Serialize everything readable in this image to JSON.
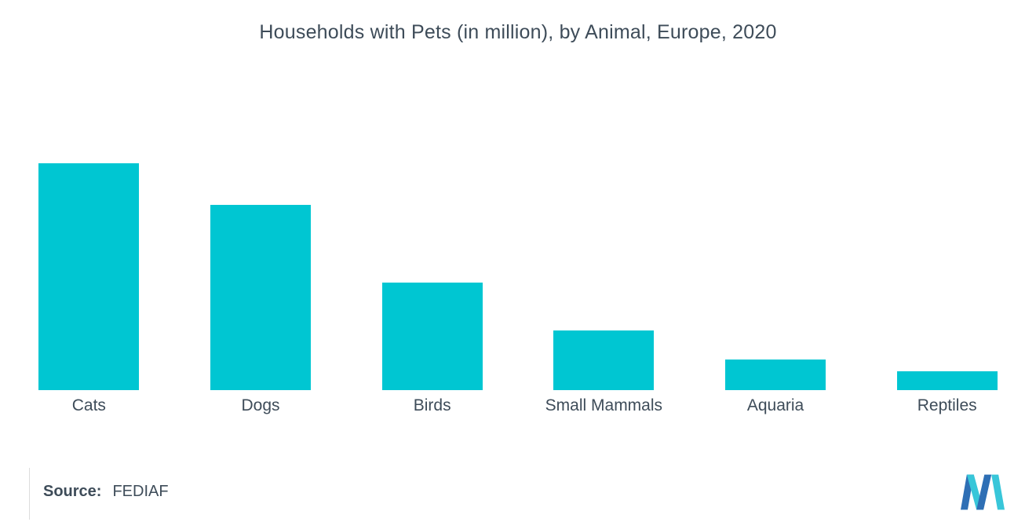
{
  "chart_data": {
    "type": "bar",
    "title": "Households with Pets (in million), by Animal, Europe, 2020",
    "categories": [
      "Cats",
      "Dogs",
      "Birds",
      "Small Mammals",
      "Aquaria",
      "Reptiles"
    ],
    "values": [
      110,
      90,
      52,
      29,
      15,
      9
    ],
    "xlabel": "",
    "ylabel": "",
    "ylim": [
      0,
      120
    ],
    "grid": false,
    "legend": false,
    "bar_color": "#00C6D2"
  },
  "source": {
    "label": "Source:",
    "value": "FEDIAF"
  },
  "logo": {
    "name": "mordor-intelligence-logo",
    "blue": "#2E6FB5",
    "teal": "#38C6D9"
  }
}
